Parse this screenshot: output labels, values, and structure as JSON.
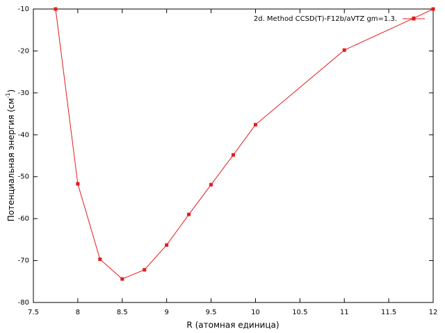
{
  "chart_data": {
    "type": "line",
    "xlabel": "R (атомная единица)",
    "ylabel": {
      "text": "Потенциальная энергия (см",
      "superscript": "-1",
      "suffix": ")"
    },
    "x": [
      7.75,
      8,
      8.25,
      8.5,
      8.75,
      9,
      9.25,
      9.5,
      9.75,
      10,
      11,
      11.78,
      12
    ],
    "series": [
      {
        "name": "2d. Method CCSD(T)-F12b/aVTZ gm=1.3.",
        "color": "#e41a1c",
        "values": [
          -10,
          -51.7,
          -69.7,
          -74.4,
          -72.2,
          -66.3,
          -59,
          -51.9,
          -44.8,
          -37.6,
          -19.8,
          -12.2,
          -10
        ]
      }
    ],
    "xlim": [
      7.5,
      12
    ],
    "xticks": [
      7.5,
      8,
      8.5,
      9,
      9.5,
      10,
      10.5,
      11,
      11.5,
      12
    ],
    "ylim": [
      -80,
      -10
    ],
    "yticks": [
      -80,
      -70,
      -60,
      -50,
      -40,
      -30,
      -20,
      -10
    ],
    "legend": "top-right"
  }
}
